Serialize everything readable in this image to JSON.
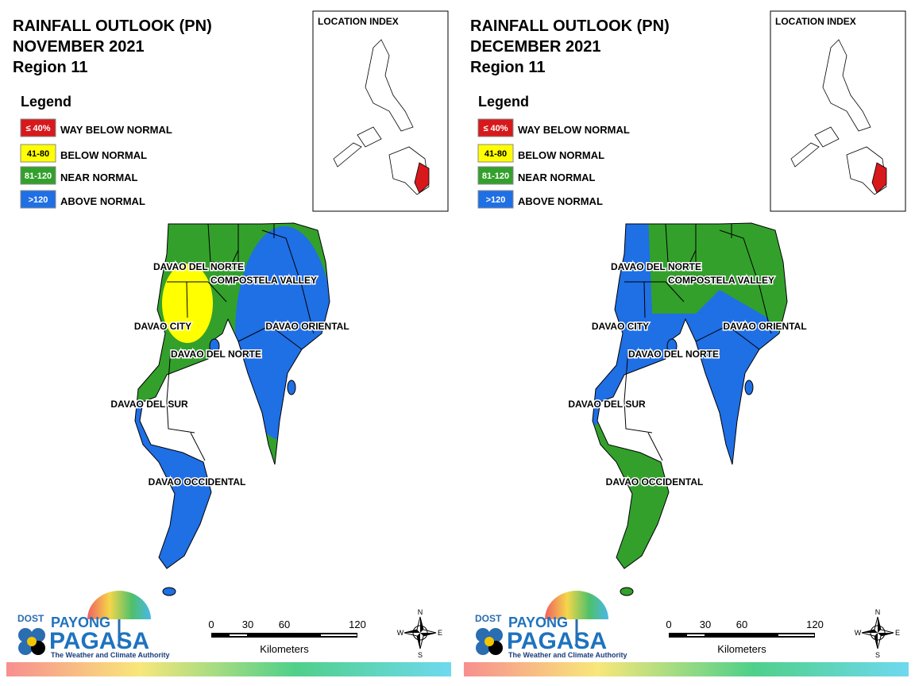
{
  "panels": [
    {
      "title": [
        "RAINFALL OUTLOOK (PN)",
        "NOVEMBER 2021",
        "Region 11"
      ],
      "legend_title": "Legend",
      "legend": [
        {
          "range": "≤ 40%",
          "label": "WAY BELOW NORMAL",
          "color": "#d7191c"
        },
        {
          "range": "41-80",
          "label": "BELOW NORMAL",
          "color": "#ffff00"
        },
        {
          "range": "81-120",
          "label": "NEAR NORMAL",
          "color": "#33a02c"
        },
        {
          "range": ">120",
          "label": "ABOVE NORMAL",
          "color": "#1f6fe5"
        }
      ],
      "location_index": "LOCATION INDEX",
      "map_labels": [
        "DAVAO DEL NORTE",
        "COMPOSTELA VALLEY",
        "DAVAO ORIENTAL",
        "DAVAO CITY",
        "DAVAO DEL NORTE",
        "DAVAO DEL SUR",
        "DAVAO OCCIDENTAL"
      ],
      "scale": {
        "ticks": [
          0,
          30,
          60,
          120
        ],
        "unit": "Kilometers"
      },
      "compass": {
        "n": "N",
        "s": "S",
        "e": "E",
        "w": "W"
      },
      "logo": {
        "dost": "DOST",
        "payong": "PAYONG",
        "pagasa": "PAGASA",
        "tagline": "The Weather and Climate Authority"
      }
    },
    {
      "title": [
        "RAINFALL OUTLOOK (PN)",
        "DECEMBER 2021",
        "Region 11"
      ],
      "legend_title": "Legend",
      "legend": [
        {
          "range": "≤ 40%",
          "label": "WAY BELOW NORMAL",
          "color": "#d7191c"
        },
        {
          "range": "41-80",
          "label": "BELOW NORMAL",
          "color": "#ffff00"
        },
        {
          "range": "81-120",
          "label": "NEAR NORMAL",
          "color": "#33a02c"
        },
        {
          "range": ">120",
          "label": "ABOVE NORMAL",
          "color": "#1f6fe5"
        }
      ],
      "location_index": "LOCATION INDEX",
      "map_labels": [
        "DAVAO DEL NORTE",
        "COMPOSTELA VALLEY",
        "DAVAO ORIENTAL",
        "DAVAO CITY",
        "DAVAO DEL NORTE",
        "DAVAO DEL SUR",
        "DAVAO OCCIDENTAL"
      ],
      "scale": {
        "ticks": [
          0,
          30,
          60,
          120
        ],
        "unit": "Kilometers"
      },
      "compass": {
        "n": "N",
        "s": "S",
        "e": "E",
        "w": "W"
      },
      "logo": {
        "dost": "DOST",
        "payong": "PAYONG",
        "pagasa": "PAGASA",
        "tagline": "The Weather and Climate Authority"
      }
    }
  ]
}
